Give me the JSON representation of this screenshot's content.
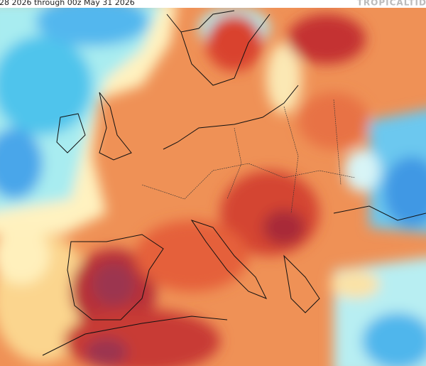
{
  "header": {
    "title": "28 2026 through 00z May 31 2026",
    "brand": "TROPICALTID"
  }
}
